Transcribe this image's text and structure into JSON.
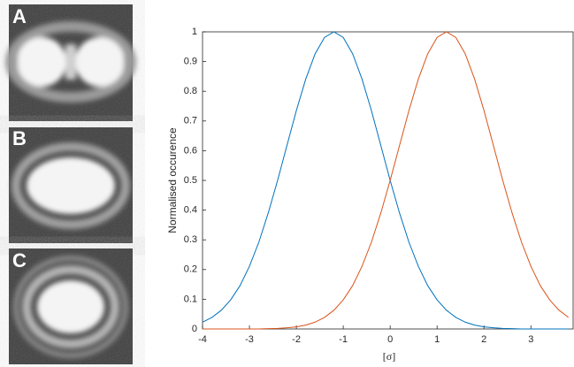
{
  "panel_labels": [
    "A",
    "B",
    "C"
  ],
  "chart_data": {
    "type": "line",
    "xlabel": "[σ]",
    "ylabel": "Normalised occurence",
    "x": [
      -4.0,
      -3.8,
      -3.6,
      -3.4,
      -3.2,
      -3.0,
      -2.8,
      -2.6,
      -2.4,
      -2.2,
      -2.0,
      -1.8,
      -1.6,
      -1.4,
      -1.2,
      -1.0,
      -0.8,
      -0.6,
      -0.4,
      -0.2,
      0.0,
      0.2,
      0.4,
      0.6,
      0.8,
      1.0,
      1.2,
      1.4,
      1.6,
      1.8,
      2.0,
      2.2,
      2.4,
      2.6,
      2.8,
      3.0,
      3.2,
      3.4,
      3.6,
      3.8
    ],
    "series": [
      {
        "color": "#0072bd",
        "values": [
          0.023,
          0.039,
          0.063,
          0.098,
          0.146,
          0.211,
          0.292,
          0.39,
          0.5,
          0.618,
          0.735,
          0.841,
          0.926,
          0.981,
          1,
          0.981,
          0.926,
          0.841,
          0.735,
          0.618,
          0.5,
          0.39,
          0.292,
          0.211,
          0.146,
          0.098,
          0.063,
          0.039,
          0.023,
          0.013,
          0.007,
          0.004,
          0.002,
          0.001,
          0,
          0,
          0,
          0,
          0,
          0
        ]
      },
      {
        "color": "#d95319",
        "values": [
          0,
          0,
          0,
          0,
          0,
          0,
          0,
          0.001,
          0.002,
          0.004,
          0.007,
          0.013,
          0.023,
          0.039,
          0.063,
          0.098,
          0.146,
          0.211,
          0.292,
          0.39,
          0.5,
          0.618,
          0.735,
          0.841,
          0.926,
          0.981,
          1,
          0.981,
          0.926,
          0.841,
          0.735,
          0.618,
          0.5,
          0.39,
          0.292,
          0.211,
          0.146,
          0.098,
          0.063,
          0.039
        ]
      }
    ],
    "xlim": [
      -4,
      3.9
    ],
    "xticks": [
      -4,
      -3,
      -2,
      -1,
      0,
      1,
      2,
      3
    ],
    "ylim": [
      0,
      1
    ],
    "yticks": [
      0,
      0.1,
      0.2,
      0.3,
      0.4,
      0.5,
      0.6,
      0.7,
      0.8,
      0.9,
      1
    ]
  }
}
